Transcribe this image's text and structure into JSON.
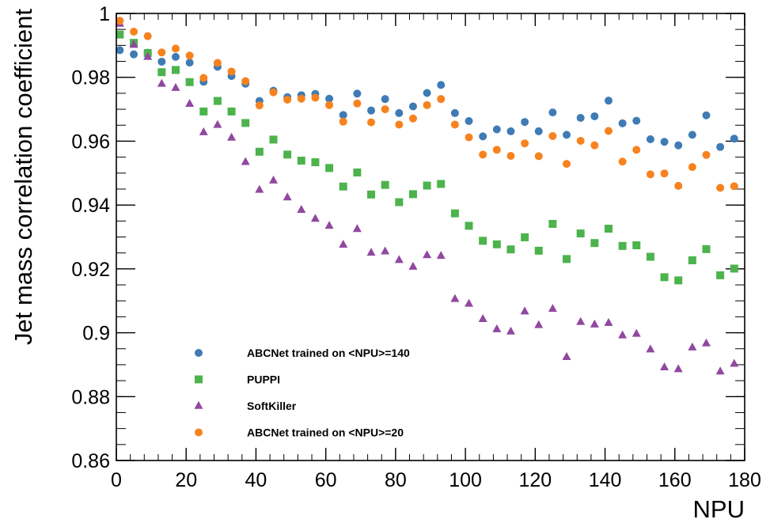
{
  "chart_data": {
    "type": "scatter",
    "title": "",
    "xlabel": "NPU",
    "ylabel": "Jet mass correlation coefficient",
    "xlim": [
      0,
      180
    ],
    "ylim": [
      0.86,
      1.0
    ],
    "x_ticks": [
      {
        "value": 0,
        "label": "0"
      },
      {
        "value": 20,
        "label": "20"
      },
      {
        "value": 40,
        "label": "40"
      },
      {
        "value": 60,
        "label": "60"
      },
      {
        "value": 80,
        "label": "80"
      },
      {
        "value": 100,
        "label": "100"
      },
      {
        "value": 120,
        "label": "120"
      },
      {
        "value": 140,
        "label": "140"
      },
      {
        "value": 160,
        "label": "160"
      },
      {
        "value": 180,
        "label": "180"
      }
    ],
    "y_ticks": [
      {
        "value": 0.86,
        "label": "0.86"
      },
      {
        "value": 0.88,
        "label": "0.88"
      },
      {
        "value": 0.9,
        "label": "0.9"
      },
      {
        "value": 0.92,
        "label": "0.92"
      },
      {
        "value": 0.94,
        "label": "0.94"
      },
      {
        "value": 0.96,
        "label": "0.96"
      },
      {
        "value": 0.98,
        "label": "0.98"
      },
      {
        "value": 1.0,
        "label": "1"
      }
    ],
    "grid": false,
    "legend_position": "bottom-left",
    "x": [
      1,
      5,
      9,
      13,
      17,
      21,
      25,
      29,
      33,
      37,
      41,
      45,
      49,
      53,
      57,
      61,
      65,
      69,
      73,
      77,
      81,
      85,
      89,
      93,
      97,
      101,
      105,
      109,
      113,
      117,
      121,
      125,
      129,
      133,
      137,
      141,
      145,
      149,
      153,
      157,
      161,
      165,
      169,
      173,
      177
    ],
    "series": [
      {
        "name": "ABCNet trained on <NPU>=140",
        "marker": "circle",
        "color": "#3f7bb4",
        "values": [
          0.9885,
          0.9872,
          0.9877,
          0.9849,
          0.9864,
          0.9846,
          0.9786,
          0.9833,
          0.9804,
          0.978,
          0.9726,
          0.9758,
          0.9738,
          0.9744,
          0.9748,
          0.9733,
          0.9682,
          0.9749,
          0.9696,
          0.9732,
          0.9688,
          0.9709,
          0.9751,
          0.9776,
          0.9688,
          0.9663,
          0.9615,
          0.9637,
          0.9631,
          0.966,
          0.9631,
          0.969,
          0.962,
          0.9673,
          0.9678,
          0.9727,
          0.9656,
          0.9664,
          0.9606,
          0.9598,
          0.9587,
          0.962,
          0.9681,
          0.9582,
          0.9608
        ]
      },
      {
        "name": "PUPPI",
        "marker": "square",
        "color": "#4db34d",
        "values": [
          0.9934,
          0.9908,
          0.9876,
          0.9816,
          0.9823,
          0.9785,
          0.9693,
          0.9726,
          0.9693,
          0.9657,
          0.9567,
          0.9605,
          0.9558,
          0.9539,
          0.9534,
          0.9516,
          0.9458,
          0.9502,
          0.9433,
          0.9463,
          0.9409,
          0.9434,
          0.9461,
          0.9466,
          0.9374,
          0.9335,
          0.9288,
          0.9277,
          0.9261,
          0.9299,
          0.9257,
          0.9341,
          0.9231,
          0.9311,
          0.9281,
          0.9326,
          0.9272,
          0.9274,
          0.9238,
          0.9174,
          0.9164,
          0.9227,
          0.9262,
          0.918,
          0.9201
        ]
      },
      {
        "name": "SoftKiller",
        "marker": "triangle",
        "color": "#9048a0",
        "values": [
          0.9968,
          0.9902,
          0.9864,
          0.978,
          0.9767,
          0.9717,
          0.9628,
          0.9651,
          0.9611,
          0.9535,
          0.9448,
          0.9477,
          0.9424,
          0.9385,
          0.9357,
          0.9335,
          0.9276,
          0.9325,
          0.9251,
          0.9255,
          0.9228,
          0.9207,
          0.9243,
          0.9241,
          0.9106,
          0.9091,
          0.9043,
          0.9011,
          0.9004,
          0.9067,
          0.9024,
          0.9075,
          0.8924,
          0.9034,
          0.9026,
          0.9031,
          0.8992,
          0.8997,
          0.8948,
          0.8892,
          0.8886,
          0.8954,
          0.8967,
          0.8879,
          0.8903
        ]
      },
      {
        "name": "ABCNet trained on <NPU>=20",
        "marker": "circle",
        "color": "#f7821e",
        "values": [
          0.9977,
          0.9943,
          0.9929,
          0.9878,
          0.989,
          0.9868,
          0.9798,
          0.9845,
          0.9818,
          0.9788,
          0.9712,
          0.9753,
          0.973,
          0.9733,
          0.9736,
          0.9713,
          0.9661,
          0.9718,
          0.9659,
          0.97,
          0.9652,
          0.9671,
          0.9713,
          0.9732,
          0.9652,
          0.9612,
          0.9558,
          0.9573,
          0.9554,
          0.9593,
          0.9553,
          0.9616,
          0.9529,
          0.9601,
          0.9587,
          0.9632,
          0.9536,
          0.9573,
          0.9496,
          0.9499,
          0.946,
          0.9519,
          0.9557,
          0.9454,
          0.9459
        ]
      }
    ]
  }
}
